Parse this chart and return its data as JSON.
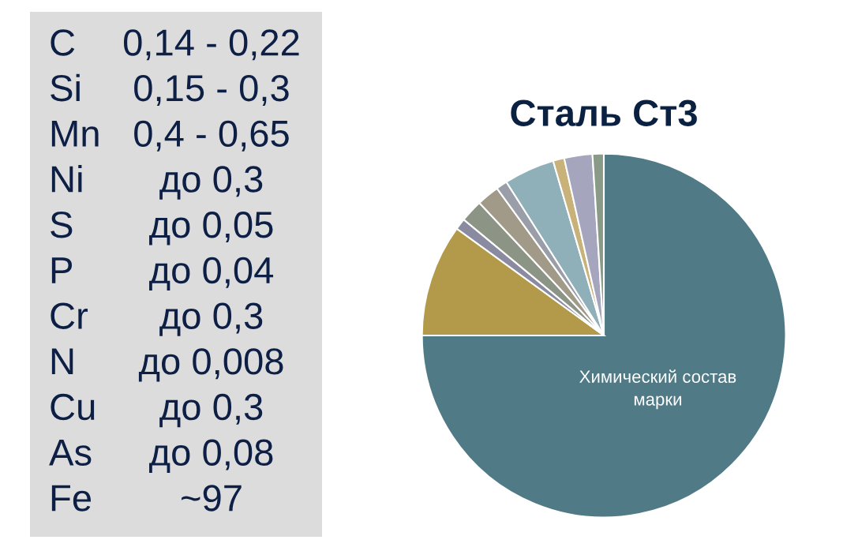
{
  "chart_data": [
    {
      "type": "other",
      "annotations": [
        "C 0,14 - 0,22",
        "Si 0,15 - 0,3",
        "Mn 0,4 - 0,65",
        "Ni до 0,3",
        "S до 0,05",
        "P до 0,04",
        "Cr до 0,3",
        "N до 0,008",
        "Cu до 0,3",
        "As до 0,08",
        "Fe ~97"
      ]
    },
    {
      "type": "pie",
      "title": "Сталь Ст3",
      "categories": [
        "Химический состав марки",
        null,
        null,
        null,
        null,
        null,
        null,
        null,
        null,
        null
      ],
      "values": [
        75,
        10,
        1,
        2,
        2,
        1,
        4.5,
        1,
        2.5,
        1
      ],
      "colors": [
        "#4f7a86",
        "#b39a4a",
        "#8a8aa0",
        "#8c9585",
        "#a29a88",
        "#9a9ea8",
        "#8fb0b8",
        "#c8b27a",
        "#a5a5bd",
        "#8a9a88"
      ]
    }
  ]
}
